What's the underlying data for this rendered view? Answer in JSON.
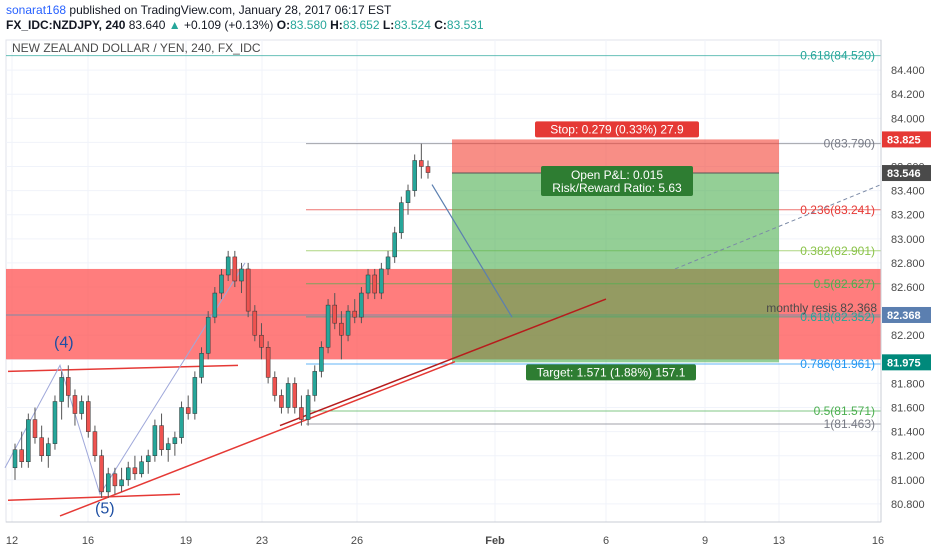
{
  "header": {
    "author": "sonarat168",
    "published": "published on TradingView.com, January 28, 2017 06:17 EST",
    "symbol": "FX_IDC:NZDJPY, 240",
    "last": "83.640",
    "change_arrow": "▲",
    "change": "+0.109 (+0.13%)",
    "o_label": "O:",
    "o": "83.580",
    "h_label": "H:",
    "h": "83.652",
    "l_label": "L:",
    "l": "83.524",
    "c_label": "C:",
    "c": "83.531"
  },
  "chart_data": {
    "type": "candlestick",
    "title": "NEW ZEALAND DOLLAR / YEN, 240, FX_IDC",
    "ylim": [
      80.65,
      84.65
    ],
    "y_ticks": [
      "80.800",
      "81.000",
      "81.200",
      "81.400",
      "81.600",
      "81.800",
      "82.000",
      "82.200",
      "82.400",
      "82.600",
      "82.800",
      "83.000",
      "83.200",
      "83.400",
      "83.600",
      "83.800",
      "84.000",
      "84.200",
      "84.400"
    ],
    "x_ticks": [
      "12",
      "16",
      "19",
      "23",
      "26",
      "Feb",
      "6",
      "9",
      "13",
      "16"
    ],
    "price_labels": [
      {
        "text": "83.825",
        "value": 83.825,
        "color": "#e53935"
      },
      {
        "text": "83.546",
        "value": 83.546,
        "color": "#4a4a4a"
      },
      {
        "text": "82.368",
        "value": 82.368,
        "color": "#5b7fb0"
      },
      {
        "text": "81.975",
        "value": 81.975,
        "color": "#00897b"
      }
    ],
    "fib_levels": [
      {
        "label": "0.618(84.520)",
        "value": 84.52,
        "color": "#26a69a"
      },
      {
        "label": "0(83.790)",
        "value": 83.79,
        "color": "#787b86"
      },
      {
        "label": "0.236(83.241)",
        "value": 83.241,
        "color": "#e53935"
      },
      {
        "label": "0.382(82.901)",
        "value": 82.901,
        "color": "#8bc34a"
      },
      {
        "label": "0.5(82.627)",
        "value": 82.627,
        "color": "#4caf50"
      },
      {
        "label": "0.618(82.352)",
        "value": 82.352,
        "color": "#26a69a"
      },
      {
        "label": "0.786(81.961)",
        "value": 81.961,
        "color": "#2196f3"
      },
      {
        "label": "0.5(81.571)",
        "value": 81.571,
        "color": "#4caf50"
      },
      {
        "label": "1(81.463)",
        "value": 81.463,
        "color": "#787b86"
      }
    ],
    "annotations": {
      "stop": "Stop: 0.279 (0.33%) 27.9",
      "open_pnl": "Open P&L: 0.015",
      "risk_reward": "Risk/Reward Ratio: 5.63",
      "target": "Target: 1.571 (1.88%) 157.1",
      "monthly": "monthly resis 82.368",
      "wave4": "(4)",
      "wave5": "(5)"
    },
    "position": {
      "entry": 83.546,
      "stop": 83.825,
      "target": 81.975
    },
    "zone": {
      "top": 82.75,
      "bottom": 82.0
    },
    "candles": [
      [
        81.1,
        81.3,
        81.0,
        81.25
      ],
      [
        81.25,
        81.4,
        81.1,
        81.15
      ],
      [
        81.15,
        81.55,
        81.1,
        81.5
      ],
      [
        81.5,
        81.6,
        81.3,
        81.35
      ],
      [
        81.35,
        81.45,
        81.15,
        81.2
      ],
      [
        81.2,
        81.35,
        81.1,
        81.3
      ],
      [
        81.3,
        81.7,
        81.25,
        81.65
      ],
      [
        81.65,
        81.9,
        81.5,
        81.85
      ],
      [
        81.85,
        81.95,
        81.6,
        81.7
      ],
      [
        81.7,
        81.75,
        81.45,
        81.55
      ],
      [
        81.55,
        81.7,
        81.5,
        81.65
      ],
      [
        81.65,
        81.7,
        81.35,
        81.4
      ],
      [
        81.4,
        81.45,
        81.15,
        81.2
      ],
      [
        81.2,
        81.25,
        80.85,
        80.9
      ],
      [
        80.9,
        81.1,
        80.85,
        81.05
      ],
      [
        81.05,
        81.1,
        80.88,
        80.95
      ],
      [
        80.95,
        81.1,
        80.9,
        81.0
      ],
      [
        81.0,
        81.15,
        80.95,
        81.1
      ],
      [
        81.1,
        81.2,
        81.0,
        81.05
      ],
      [
        81.05,
        81.2,
        81.02,
        81.15
      ],
      [
        81.15,
        81.25,
        81.05,
        81.2
      ],
      [
        81.2,
        81.5,
        81.15,
        81.45
      ],
      [
        81.45,
        81.55,
        81.2,
        81.25
      ],
      [
        81.25,
        81.35,
        81.15,
        81.3
      ],
      [
        81.3,
        81.4,
        81.2,
        81.35
      ],
      [
        81.35,
        81.65,
        81.3,
        81.6
      ],
      [
        81.6,
        81.7,
        81.5,
        81.55
      ],
      [
        81.55,
        81.9,
        81.5,
        81.85
      ],
      [
        81.85,
        82.1,
        81.8,
        82.05
      ],
      [
        82.05,
        82.4,
        82.0,
        82.35
      ],
      [
        82.35,
        82.6,
        82.3,
        82.55
      ],
      [
        82.55,
        82.75,
        82.5,
        82.7
      ],
      [
        82.7,
        82.9,
        82.65,
        82.85
      ],
      [
        82.85,
        82.9,
        82.6,
        82.65
      ],
      [
        82.65,
        82.8,
        82.55,
        82.75
      ],
      [
        82.75,
        82.8,
        82.35,
        82.4
      ],
      [
        82.4,
        82.45,
        82.15,
        82.2
      ],
      [
        82.2,
        82.3,
        82.0,
        82.1
      ],
      [
        82.1,
        82.15,
        81.8,
        81.85
      ],
      [
        81.85,
        81.9,
        81.65,
        81.7
      ],
      [
        81.7,
        81.75,
        81.55,
        81.6
      ],
      [
        81.6,
        81.85,
        81.55,
        81.8
      ],
      [
        81.8,
        81.85,
        81.55,
        81.6
      ],
      [
        81.6,
        81.7,
        81.45,
        81.5
      ],
      [
        81.5,
        81.75,
        81.45,
        81.7
      ],
      [
        81.7,
        81.95,
        81.65,
        81.9
      ],
      [
        81.9,
        82.15,
        81.85,
        82.1
      ],
      [
        82.1,
        82.5,
        82.05,
        82.45
      ],
      [
        82.45,
        82.55,
        82.25,
        82.3
      ],
      [
        82.3,
        82.4,
        82.0,
        82.2
      ],
      [
        82.2,
        82.45,
        82.15,
        82.4
      ],
      [
        82.4,
        82.5,
        82.3,
        82.35
      ],
      [
        82.35,
        82.6,
        82.3,
        82.55
      ],
      [
        82.55,
        82.75,
        82.5,
        82.7
      ],
      [
        82.7,
        82.75,
        82.5,
        82.55
      ],
      [
        82.55,
        82.8,
        82.5,
        82.75
      ],
      [
        82.75,
        82.9,
        82.7,
        82.85
      ],
      [
        82.85,
        83.1,
        82.8,
        83.05
      ],
      [
        83.05,
        83.35,
        83.0,
        83.3
      ],
      [
        83.3,
        83.45,
        83.2,
        83.4
      ],
      [
        83.4,
        83.7,
        83.35,
        83.65
      ],
      [
        83.65,
        83.79,
        83.5,
        83.6
      ],
      [
        83.6,
        83.65,
        83.5,
        83.55
      ]
    ]
  }
}
